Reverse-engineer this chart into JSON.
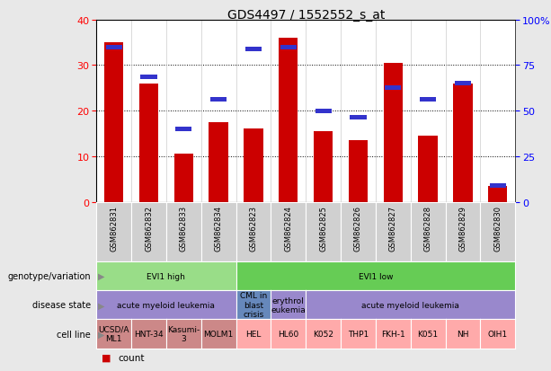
{
  "title": "GDS4497 / 1552552_s_at",
  "samples": [
    "GSM862831",
    "GSM862832",
    "GSM862833",
    "GSM862834",
    "GSM862823",
    "GSM862824",
    "GSM862825",
    "GSM862826",
    "GSM862827",
    "GSM862828",
    "GSM862829",
    "GSM862830"
  ],
  "counts": [
    35,
    26,
    10.5,
    17.5,
    16,
    36,
    15.5,
    13.5,
    30.5,
    14.5,
    26,
    3.5
  ],
  "percentile_ranks": [
    34,
    27.5,
    16,
    22.5,
    33.5,
    34,
    20,
    18.5,
    25,
    22.5,
    26,
    3.5
  ],
  "ylim_left": [
    0,
    40
  ],
  "ylim_right": [
    0,
    100
  ],
  "yticks_left": [
    0,
    10,
    20,
    30,
    40
  ],
  "yticks_right": [
    0,
    25,
    50,
    75,
    100
  ],
  "yticklabels_right": [
    "0",
    "25",
    "50",
    "75",
    "100%"
  ],
  "bar_color": "#cc0000",
  "percentile_color": "#3333cc",
  "bg_color": "#e8e8e8",
  "plot_bg": "#ffffff",
  "xtick_bg": "#d0d0d0",
  "genotype_groups": [
    {
      "label": "EVI1 high",
      "start": 0,
      "end": 4,
      "color": "#99dd88"
    },
    {
      "label": "EVI1 low",
      "start": 4,
      "end": 12,
      "color": "#66cc55"
    }
  ],
  "disease_groups": [
    {
      "label": "acute myeloid leukemia",
      "start": 0,
      "end": 4,
      "color": "#9988cc"
    },
    {
      "label": "CML in\nblast\ncrisis",
      "start": 4,
      "end": 5,
      "color": "#6688bb"
    },
    {
      "label": "erythrol\neukemia",
      "start": 5,
      "end": 6,
      "color": "#9988cc"
    },
    {
      "label": "acute myeloid leukemia",
      "start": 6,
      "end": 12,
      "color": "#9988cc"
    }
  ],
  "cell_lines": [
    {
      "label": "UCSD/A\nML1",
      "start": 0,
      "end": 1,
      "color": "#cc8888"
    },
    {
      "label": "HNT-34",
      "start": 1,
      "end": 2,
      "color": "#cc8888"
    },
    {
      "label": "Kasumi-\n3",
      "start": 2,
      "end": 3,
      "color": "#cc8888"
    },
    {
      "label": "MOLM1",
      "start": 3,
      "end": 4,
      "color": "#cc8888"
    },
    {
      "label": "HEL",
      "start": 4,
      "end": 5,
      "color": "#ffaaaa"
    },
    {
      "label": "HL60",
      "start": 5,
      "end": 6,
      "color": "#ffaaaa"
    },
    {
      "label": "K052",
      "start": 6,
      "end": 7,
      "color": "#ffaaaa"
    },
    {
      "label": "THP1",
      "start": 7,
      "end": 8,
      "color": "#ffaaaa"
    },
    {
      "label": "FKH-1",
      "start": 8,
      "end": 9,
      "color": "#ffaaaa"
    },
    {
      "label": "K051",
      "start": 9,
      "end": 10,
      "color": "#ffaaaa"
    },
    {
      "label": "NH",
      "start": 10,
      "end": 11,
      "color": "#ffaaaa"
    },
    {
      "label": "OIH1",
      "start": 11,
      "end": 12,
      "color": "#ffaaaa"
    }
  ],
  "row_labels": [
    "genotype/variation",
    "disease state",
    "cell line"
  ],
  "legend_count_color": "#cc0000",
  "legend_pct_color": "#3333cc"
}
